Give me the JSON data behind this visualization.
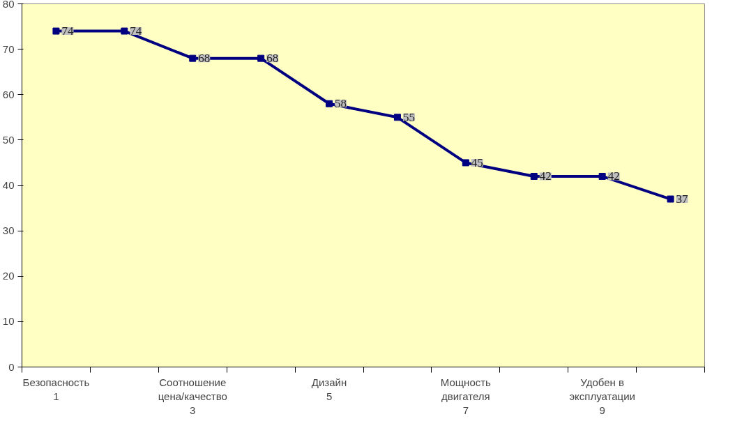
{
  "chart_data": {
    "type": "line",
    "categories": [
      "Безопасность\n1",
      null,
      "Соотношение\nцена/качество\n3",
      null,
      "Дизайн\n5",
      null,
      "Мощность\nдвигателя\n7",
      null,
      "Удобен в\nэксплуатации\n9",
      null
    ],
    "series": [
      {
        "color": "#000080",
        "values": [
          74,
          74,
          68,
          68,
          58,
          55,
          45,
          42,
          42,
          37
        ]
      }
    ],
    "ylim": [
      0,
      80
    ],
    "yticks": [
      0,
      10,
      20,
      30,
      40,
      50,
      60,
      70,
      80
    ],
    "marker": "square",
    "line_style": "solid",
    "data_labels": true
  }
}
